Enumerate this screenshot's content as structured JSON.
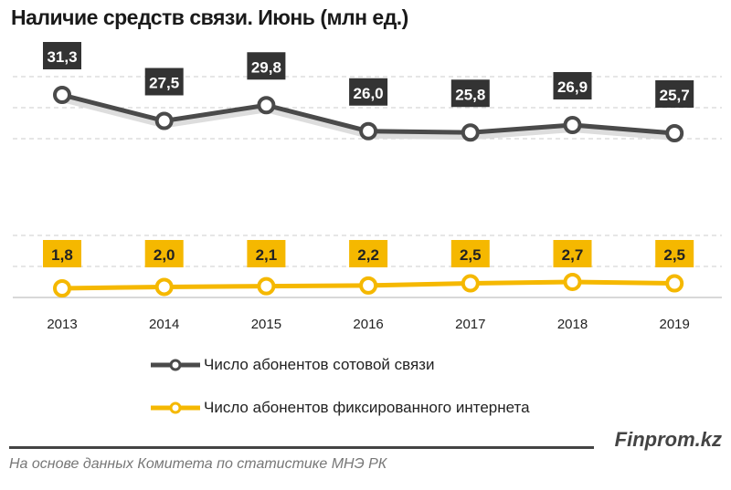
{
  "chart_data": {
    "type": "line",
    "title": "Наличие средств связи. Июнь (млн ед.)",
    "categories": [
      "2013",
      "2014",
      "2015",
      "2016",
      "2017",
      "2018",
      "2019"
    ],
    "series": [
      {
        "name": "Число абонентов сотовой связи",
        "color": "#4a4a4a",
        "values": [
          31.3,
          27.5,
          29.8,
          26.0,
          25.8,
          26.9,
          25.7
        ],
        "labels": [
          "31,3",
          "27,5",
          "29,8",
          "26,0",
          "25,8",
          "26,9",
          "25,7"
        ]
      },
      {
        "name": "Число абонентов фиксированного интернета",
        "color": "#f5b800",
        "values": [
          1.8,
          2.0,
          2.1,
          2.2,
          2.5,
          2.7,
          2.5
        ],
        "labels": [
          "1,8",
          "2,0",
          "2,1",
          "2,2",
          "2,5",
          "2,7",
          "2,5"
        ]
      }
    ],
    "axis_break": true,
    "grid": "dashed horizontal",
    "legend_placement": "bottom"
  },
  "footer": {
    "brand": "Finprom.kz",
    "source": "На основе данных  Комитета по статистике МНЭ РК"
  }
}
